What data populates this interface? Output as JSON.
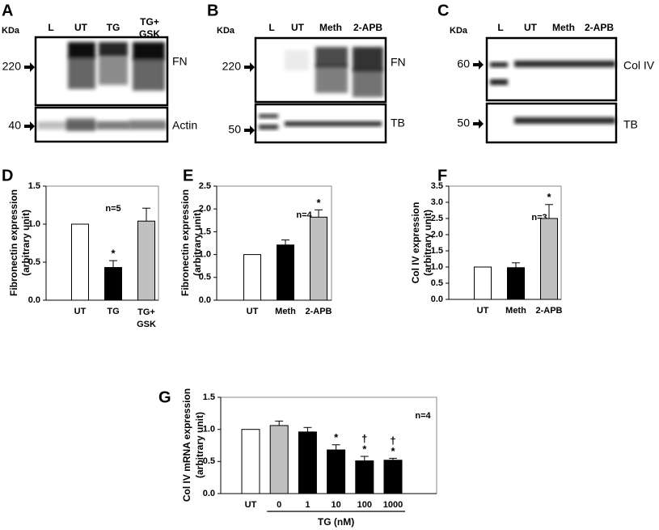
{
  "blots": [
    {
      "panel": "A",
      "unit": "KDa",
      "lanes": [
        "L",
        "UT",
        "TG",
        "TG+\nGSK"
      ],
      "rows": [
        {
          "marker": 220,
          "protein": "FN"
        },
        {
          "marker": 40,
          "protein": "Actin"
        }
      ]
    },
    {
      "panel": "B",
      "unit": "KDa",
      "lanes": [
        "L",
        "UT",
        "Meth",
        "2-APB"
      ],
      "rows": [
        {
          "marker": 220,
          "protein": "FN"
        },
        {
          "marker": 50,
          "protein": "TB"
        }
      ]
    },
    {
      "panel": "C",
      "unit": "KDa",
      "lanes": [
        "L",
        "UT",
        "Meth",
        "2-APB"
      ],
      "rows": [
        {
          "marker": 60,
          "protein": "Col IV"
        },
        {
          "marker": 50,
          "protein": "TB"
        }
      ]
    }
  ],
  "chart_data": [
    {
      "type": "bar",
      "panel": "D",
      "note": "n=5",
      "ylabel": [
        "Fibronectin expression",
        "(arbitrary unit)"
      ],
      "categories": [
        "UT",
        "TG",
        "TG+\nGSK"
      ],
      "values": [
        1.0,
        0.43,
        1.04
      ],
      "errors": [
        0,
        0.09,
        0.17
      ],
      "colors": [
        "#ffffff",
        "#000000",
        "#c0c0c0"
      ],
      "bar_labels": [
        [],
        [
          "*"
        ],
        []
      ],
      "ylim": [
        0,
        1.5
      ],
      "yticks": [
        {
          "value": 0,
          "label": "0.0"
        },
        {
          "value": 0.5,
          "label": "0.5"
        },
        {
          "value": 1,
          "label": "1.0"
        },
        {
          "value": 1.5,
          "label": "1.5"
        }
      ]
    },
    {
      "type": "bar",
      "panel": "E",
      "note": "n=4",
      "ylabel": [
        "Fibronectin expression",
        "(arbitrary unit)"
      ],
      "categories": [
        "UT",
        "Meth",
        "2-APB"
      ],
      "values": [
        1.0,
        1.21,
        1.82
      ],
      "errors": [
        0,
        0.11,
        0.16
      ],
      "colors": [
        "#ffffff",
        "#000000",
        "#c0c0c0"
      ],
      "bar_labels": [
        [],
        [],
        [
          "*"
        ]
      ],
      "ylim": [
        0,
        2.5
      ],
      "yticks": [
        {
          "value": 0,
          "label": "0.0"
        },
        {
          "value": 0.5,
          "label": "0.5"
        },
        {
          "value": 1,
          "label": "1.0"
        },
        {
          "value": 1.5,
          "label": "1.5"
        },
        {
          "value": 2,
          "label": "2.0"
        },
        {
          "value": 2.5,
          "label": "2.5"
        }
      ]
    },
    {
      "type": "bar",
      "panel": "F",
      "note": "n=3",
      "ylabel": [
        "Col IV expression",
        "(arbitrary unit)"
      ],
      "categories": [
        "UT",
        "Meth",
        "2-APB"
      ],
      "values": [
        1.0,
        0.98,
        2.5
      ],
      "errors": [
        0,
        0.15,
        0.43
      ],
      "colors": [
        "#ffffff",
        "#000000",
        "#c0c0c0"
      ],
      "bar_labels": [
        [],
        [],
        [
          "*"
        ]
      ],
      "ylim": [
        0,
        3.5
      ],
      "yticks": [
        {
          "value": 0,
          "label": "0.0"
        },
        {
          "value": 0.5,
          "label": "0.5"
        },
        {
          "value": 1,
          "label": "1.0"
        },
        {
          "value": 1.5,
          "label": "1.5"
        },
        {
          "value": 2,
          "label": "2.0"
        },
        {
          "value": 2.5,
          "label": "2.5"
        },
        {
          "value": 3,
          "label": "3.0"
        },
        {
          "value": 3.5,
          "label": "3.5"
        }
      ]
    },
    {
      "type": "bar",
      "panel": "G",
      "note": "n=4",
      "ylabel": [
        "Col IV mRNA expression",
        "(arbitrary unit)"
      ],
      "xlabel": "TG (nM)",
      "categories": [
        "UT",
        "0",
        "1",
        "10",
        "100",
        "1000"
      ],
      "values": [
        1.0,
        1.06,
        0.96,
        0.68,
        0.51,
        0.52
      ],
      "errors": [
        0,
        0.07,
        0.07,
        0.08,
        0.07,
        0.03
      ],
      "colors": [
        "#ffffff",
        "#c0c0c0",
        "#000000",
        "#000000",
        "#000000",
        "#000000"
      ],
      "bar_labels": [
        [],
        [],
        [],
        [
          "*"
        ],
        [
          "†",
          "*"
        ],
        [
          "†",
          "*"
        ]
      ],
      "ylim": [
        0,
        1.5
      ],
      "yticks": [
        {
          "value": 0,
          "label": "0.0"
        },
        {
          "value": 0.5,
          "label": "0.5"
        },
        {
          "value": 1,
          "label": "1.0"
        },
        {
          "value": 1.5,
          "label": "1.5"
        }
      ]
    }
  ]
}
